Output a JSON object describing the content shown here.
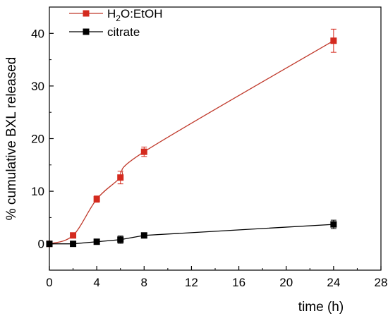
{
  "chart_data": {
    "type": "line",
    "xlabel": "time (h)",
    "ylabel": "% cumulative BXL released",
    "xlim": [
      0,
      28
    ],
    "ylim": [
      -5,
      45
    ],
    "xticks": [
      0,
      4,
      8,
      12,
      16,
      20,
      24,
      28
    ],
    "yticks": [
      0,
      10,
      20,
      30,
      40
    ],
    "grid": false,
    "legend": "top-left",
    "series": [
      {
        "name": "H2O:EtOH",
        "name_parts": {
          "base": "H",
          "sub": "2",
          "rest": "O:EtOH"
        },
        "color": "#c0392b",
        "marker_color": "#d42a1e",
        "curve": "smooth",
        "points": [
          {
            "x": 0,
            "y": 0,
            "err": 0
          },
          {
            "x": 2,
            "y": 1.6,
            "err": 0.3
          },
          {
            "x": 4,
            "y": 8.5,
            "err": 0.6
          },
          {
            "x": 6,
            "y": 12.6,
            "err": 1.2
          },
          {
            "x": 8,
            "y": 17.5,
            "err": 0.9
          },
          {
            "x": 24,
            "y": 38.6,
            "err": 2.2
          }
        ]
      },
      {
        "name": "citrate",
        "color": "#000000",
        "marker_color": "#000000",
        "curve": "linear",
        "points": [
          {
            "x": 0,
            "y": 0,
            "err": 0
          },
          {
            "x": 2,
            "y": 0,
            "err": 0
          },
          {
            "x": 4,
            "y": 0.4,
            "err": 0.2
          },
          {
            "x": 6,
            "y": 0.8,
            "err": 0.7
          },
          {
            "x": 8,
            "y": 1.6,
            "err": 0.3
          },
          {
            "x": 24,
            "y": 3.7,
            "err": 0.8
          }
        ]
      }
    ]
  }
}
